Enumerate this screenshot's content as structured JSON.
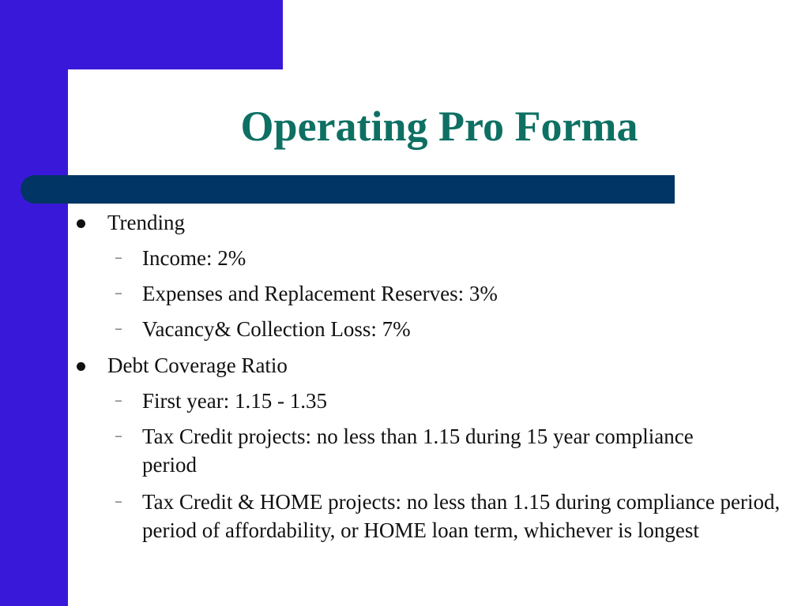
{
  "slide": {
    "title": "Operating Pro Forma",
    "bullets": [
      {
        "text": "Trending",
        "sub": [
          "Income: 2%",
          "Expenses and Replacement Reserves: 3%",
          "Vacancy& Collection Loss: 7%"
        ]
      },
      {
        "text": "Debt Coverage Ratio",
        "sub": [
          "First year: 1.15 - 1.35",
          "Tax Credit projects: no less than 1.15 during 15 year compliance period",
          "Tax Credit & HOME projects: no less than 1.15 during compliance period, period of affordability, or HOME loan term, whichever is longest"
        ]
      }
    ]
  },
  "theme": {
    "band_color": "#3a18d9",
    "title_bar_color": "#013565",
    "title_color": "#0d7063",
    "text_color": "#111111"
  }
}
